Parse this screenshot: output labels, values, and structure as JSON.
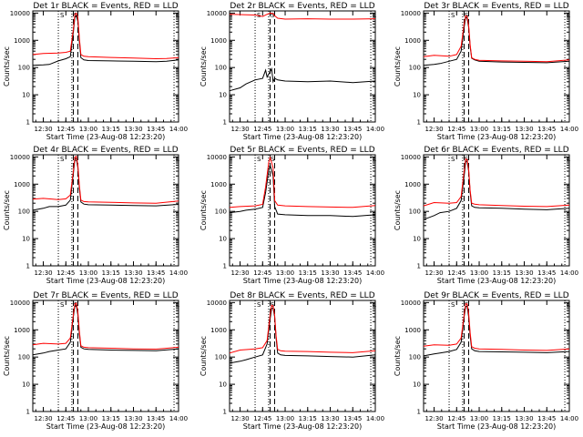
{
  "page": {
    "background": "#ffffff"
  },
  "colors": {
    "events": "#000000",
    "lld": "#ff0000",
    "axes": "#000000"
  },
  "shared": {
    "ylabel": "Counts/sec",
    "xlabel": "Start Time (23-Aug-08 12:23:20)",
    "xticks": [
      "12:30",
      "12:45",
      "13:00",
      "13:15",
      "13:30",
      "13:45",
      "14:00"
    ],
    "yticks": [
      "1",
      "10",
      "100",
      "1000",
      "10000"
    ]
  },
  "chart_data": [
    {
      "type": "line",
      "title": "Det 1r BLACK = Events, RED = LLD",
      "xlabel": "Start Time (23-Aug-08 12:23:20)",
      "ylabel": "Counts/sec",
      "xlim": [
        "12:23",
        "14:00"
      ],
      "ylim": [
        1,
        12000
      ],
      "yscale": "log",
      "markers": {
        "dotted_lines": [
          "12:40",
          "12:49",
          "13:57"
        ],
        "dashed_lines": [
          "12:50",
          "12:53"
        ],
        "top_labels": [
          "S",
          "S",
          "L"
        ]
      },
      "series": [
        {
          "name": "Events",
          "color": "#000000",
          "x": [
            "12:23",
            "12:30",
            "12:34",
            "12:40",
            "12:45",
            "12:48",
            "12:50",
            "12:51",
            "12:52",
            "12:53",
            "12:54",
            "12:55",
            "12:57",
            "13:00",
            "13:15",
            "13:30",
            "13:45",
            "13:52",
            "14:00"
          ],
          "y": [
            120,
            125,
            130,
            175,
            210,
            250,
            2000,
            7000,
            8000,
            5000,
            900,
            230,
            190,
            180,
            175,
            170,
            165,
            170,
            190
          ]
        },
        {
          "name": "LLD",
          "color": "#ff0000",
          "x": [
            "12:23",
            "12:30",
            "12:40",
            "12:45",
            "12:48",
            "12:50",
            "12:51",
            "12:52",
            "12:53",
            "12:54",
            "12:55",
            "12:57",
            "13:00",
            "13:15",
            "13:30",
            "13:45",
            "13:52",
            "14:00"
          ],
          "y": [
            300,
            330,
            340,
            360,
            400,
            2500,
            9000,
            10000,
            7000,
            1200,
            300,
            260,
            250,
            235,
            225,
            210,
            215,
            230
          ]
        }
      ]
    },
    {
      "type": "line",
      "title": "Det 2r BLACK = Events, RED = LLD",
      "xlabel": "Start Time (23-Aug-08 12:23:20)",
      "ylabel": "Counts/sec",
      "xlim": [
        "12:23",
        "14:00"
      ],
      "ylim": [
        1,
        12000
      ],
      "yscale": "log",
      "markers": {
        "dotted_lines": [
          "12:40",
          "12:49",
          "13:57"
        ],
        "dashed_lines": [
          "12:50",
          "12:53"
        ],
        "top_labels": [
          "S",
          "S",
          "L"
        ]
      },
      "series": [
        {
          "name": "Events",
          "color": "#000000",
          "x": [
            "12:23",
            "12:30",
            "12:34",
            "12:40",
            "12:45",
            "12:47",
            "12:48",
            "12:51",
            "12:52",
            "12:53",
            "12:55",
            "13:00",
            "13:15",
            "13:30",
            "13:45",
            "14:00"
          ],
          "y": [
            14,
            18,
            25,
            35,
            40,
            80,
            45,
            90,
            30,
            40,
            35,
            32,
            30,
            32,
            28,
            32
          ]
        },
        {
          "name": "LLD",
          "color": "#ff0000",
          "x": [
            "12:23",
            "12:40",
            "12:45",
            "12:48",
            "12:50",
            "12:52",
            "12:53",
            "12:55",
            "13:00",
            "13:15",
            "13:30",
            "13:45",
            "14:00"
          ],
          "y": [
            9000,
            8500,
            7500,
            9000,
            10000,
            9500,
            8000,
            6500,
            6000,
            6200,
            6000,
            6000,
            6200
          ]
        }
      ]
    },
    {
      "type": "line",
      "title": "Det 3r BLACK = Events, RED = LLD",
      "xlabel": "Start Time (23-Aug-08 12:23:20)",
      "ylabel": "Counts/sec",
      "xlim": [
        "12:23",
        "14:00"
      ],
      "ylim": [
        1,
        12000
      ],
      "yscale": "log",
      "markers": {
        "dotted_lines": [
          "12:40",
          "12:49",
          "13:57"
        ],
        "dashed_lines": [
          "12:50",
          "12:53"
        ],
        "top_labels": [
          "S",
          "S",
          "L"
        ]
      },
      "series": [
        {
          "name": "Events",
          "color": "#000000",
          "x": [
            "12:23",
            "12:30",
            "12:34",
            "12:40",
            "12:45",
            "12:48",
            "12:50",
            "12:51",
            "12:52",
            "12:53",
            "12:54",
            "12:55",
            "12:57",
            "13:00",
            "13:15",
            "13:30",
            "13:45",
            "14:00"
          ],
          "y": [
            120,
            130,
            140,
            170,
            200,
            400,
            3000,
            7000,
            6500,
            3000,
            600,
            220,
            190,
            170,
            160,
            155,
            150,
            170
          ]
        },
        {
          "name": "LLD",
          "color": "#ff0000",
          "x": [
            "12:23",
            "12:30",
            "12:40",
            "12:45",
            "12:48",
            "12:50",
            "12:51",
            "12:52",
            "12:53",
            "12:54",
            "12:55",
            "12:57",
            "13:00",
            "13:15",
            "13:30",
            "13:45",
            "14:00"
          ],
          "y": [
            250,
            280,
            260,
            300,
            600,
            4000,
            8000,
            7500,
            3500,
            700,
            230,
            200,
            185,
            175,
            170,
            165,
            190
          ]
        }
      ]
    },
    {
      "type": "line",
      "title": "Det 4r BLACK = Events, RED = LLD",
      "xlabel": "Start Time (23-Aug-08 12:23:20)",
      "ylabel": "Counts/sec",
      "xlim": [
        "12:23",
        "14:00"
      ],
      "ylim": [
        1,
        12000
      ],
      "yscale": "log",
      "markers": {
        "dotted_lines": [
          "12:40",
          "12:49",
          "13:57"
        ],
        "dashed_lines": [
          "12:50",
          "12:53"
        ],
        "top_labels": [
          "S",
          "S",
          "L"
        ]
      },
      "series": [
        {
          "name": "Events",
          "color": "#000000",
          "x": [
            "12:23",
            "12:30",
            "12:34",
            "12:40",
            "12:45",
            "12:48",
            "12:50",
            "12:51",
            "12:52",
            "12:53",
            "12:54",
            "12:55",
            "12:57",
            "13:00",
            "13:15",
            "13:30",
            "13:45",
            "14:00"
          ],
          "y": [
            110,
            130,
            150,
            150,
            170,
            260,
            2500,
            8000,
            9000,
            4000,
            700,
            220,
            185,
            175,
            170,
            165,
            160,
            180
          ]
        },
        {
          "name": "LLD",
          "color": "#ff0000",
          "x": [
            "12:23",
            "12:30",
            "12:40",
            "12:45",
            "12:48",
            "12:50",
            "12:51",
            "12:52",
            "12:53",
            "12:54",
            "12:55",
            "12:57",
            "13:00",
            "13:15",
            "13:30",
            "13:45",
            "14:00"
          ],
          "y": [
            280,
            300,
            270,
            290,
            400,
            3000,
            9500,
            10500,
            5000,
            900,
            260,
            230,
            225,
            215,
            205,
            200,
            240
          ]
        }
      ]
    },
    {
      "type": "line",
      "title": "Det 5r BLACK = Events, RED = LLD",
      "xlabel": "Start Time (23-Aug-08 12:23:20)",
      "ylabel": "Counts/sec",
      "xlim": [
        "12:23",
        "14:00"
      ],
      "ylim": [
        1,
        12000
      ],
      "yscale": "log",
      "markers": {
        "dotted_lines": [
          "12:40",
          "12:49",
          "13:57"
        ],
        "dashed_lines": [
          "12:50",
          "12:53"
        ],
        "top_labels": [
          "S",
          "S",
          "L"
        ]
      },
      "series": [
        {
          "name": "Events",
          "color": "#000000",
          "x": [
            "12:23",
            "12:30",
            "12:34",
            "12:40",
            "12:45",
            "12:47",
            "12:49",
            "12:50",
            "12:52",
            "12:53",
            "12:55",
            "13:00",
            "13:15",
            "13:30",
            "13:45",
            "14:00"
          ],
          "y": [
            90,
            100,
            110,
            120,
            140,
            500,
            3000,
            5000,
            2000,
            150,
            80,
            75,
            70,
            70,
            65,
            75
          ]
        },
        {
          "name": "LLD",
          "color": "#ff0000",
          "x": [
            "12:23",
            "12:30",
            "12:40",
            "12:45",
            "12:47",
            "12:49",
            "12:50",
            "12:52",
            "12:53",
            "12:55",
            "13:00",
            "13:15",
            "13:30",
            "13:45",
            "14:00"
          ],
          "y": [
            140,
            150,
            160,
            180,
            800,
            6000,
            9500,
            4000,
            250,
            170,
            160,
            150,
            145,
            140,
            165
          ]
        }
      ]
    },
    {
      "type": "line",
      "title": "Det 6r BLACK = Events, RED = LLD",
      "xlabel": "Start Time (23-Aug-08 12:23:20)",
      "ylabel": "Counts/sec",
      "xlim": [
        "12:23",
        "14:00"
      ],
      "ylim": [
        1,
        12000
      ],
      "yscale": "log",
      "markers": {
        "dotted_lines": [
          "12:40",
          "12:49",
          "13:57"
        ],
        "dashed_lines": [
          "12:50",
          "12:53"
        ],
        "top_labels": [
          "S",
          "S",
          "L"
        ]
      },
      "series": [
        {
          "name": "Events",
          "color": "#000000",
          "x": [
            "12:23",
            "12:30",
            "12:34",
            "12:40",
            "12:45",
            "12:48",
            "12:50",
            "12:51",
            "12:52",
            "12:53",
            "12:54",
            "12:55",
            "12:57",
            "13:00",
            "13:15",
            "13:30",
            "13:45",
            "14:00"
          ],
          "y": [
            50,
            70,
            90,
            100,
            130,
            250,
            2000,
            6500,
            7000,
            3000,
            500,
            160,
            140,
            135,
            130,
            120,
            115,
            130
          ]
        },
        {
          "name": "LLD",
          "color": "#ff0000",
          "x": [
            "12:23",
            "12:30",
            "12:40",
            "12:45",
            "12:48",
            "12:50",
            "12:51",
            "12:52",
            "12:53",
            "12:54",
            "12:55",
            "12:57",
            "13:00",
            "13:15",
            "13:30",
            "13:45",
            "14:00"
          ],
          "y": [
            160,
            210,
            200,
            210,
            350,
            3000,
            8500,
            8000,
            3500,
            600,
            200,
            185,
            175,
            165,
            155,
            150,
            170
          ]
        }
      ]
    },
    {
      "type": "line",
      "title": "Det 7r BLACK = Events, RED = LLD",
      "xlabel": "Start Time (23-Aug-08 12:23:20)",
      "ylabel": "Counts/sec",
      "xlim": [
        "12:23",
        "14:00"
      ],
      "ylim": [
        1,
        12000
      ],
      "yscale": "log",
      "markers": {
        "dotted_lines": [
          "12:40",
          "12:49",
          "13:57"
        ],
        "dashed_lines": [
          "12:50",
          "12:53"
        ],
        "top_labels": [
          "S",
          "S",
          "L"
        ]
      },
      "series": [
        {
          "name": "Events",
          "color": "#000000",
          "x": [
            "12:23",
            "12:30",
            "12:34",
            "12:40",
            "12:45",
            "12:48",
            "12:50",
            "12:51",
            "12:52",
            "12:53",
            "12:54",
            "12:55",
            "12:57",
            "13:00",
            "13:15",
            "13:30",
            "13:45",
            "14:00"
          ],
          "y": [
            120,
            140,
            160,
            180,
            200,
            350,
            3000,
            7500,
            8000,
            3500,
            700,
            230,
            200,
            190,
            180,
            175,
            170,
            200
          ]
        },
        {
          "name": "LLD",
          "color": "#ff0000",
          "x": [
            "12:23",
            "12:30",
            "12:40",
            "12:45",
            "12:48",
            "12:50",
            "12:51",
            "12:52",
            "12:53",
            "12:54",
            "12:55",
            "12:57",
            "13:00",
            "13:15",
            "13:30",
            "13:45",
            "14:00"
          ],
          "y": [
            280,
            320,
            300,
            320,
            500,
            3500,
            9000,
            9500,
            4500,
            900,
            260,
            230,
            220,
            210,
            200,
            195,
            230
          ]
        }
      ]
    },
    {
      "type": "line",
      "title": "Det 8r BLACK = Events, RED = LLD",
      "xlabel": "Start Time (23-Aug-08 12:23:20)",
      "ylabel": "Counts/sec",
      "xlim": [
        "12:23",
        "14:00"
      ],
      "ylim": [
        1,
        12000
      ],
      "yscale": "log",
      "markers": {
        "dotted_lines": [
          "12:40",
          "12:49",
          "13:57"
        ],
        "dashed_lines": [
          "12:50",
          "12:53"
        ],
        "top_labels": [
          "S",
          "S",
          "L"
        ]
      },
      "series": [
        {
          "name": "Events",
          "color": "#000000",
          "x": [
            "12:23",
            "12:30",
            "12:34",
            "12:40",
            "12:45",
            "12:48",
            "12:50",
            "12:51",
            "12:52",
            "12:53",
            "12:54",
            "12:55",
            "12:57",
            "13:00",
            "13:15",
            "13:30",
            "13:45",
            "14:00"
          ],
          "y": [
            60,
            70,
            80,
            100,
            120,
            300,
            2500,
            6000,
            6500,
            3000,
            500,
            140,
            120,
            115,
            110,
            105,
            100,
            120
          ]
        },
        {
          "name": "LLD",
          "color": "#ff0000",
          "x": [
            "12:23",
            "12:30",
            "12:40",
            "12:45",
            "12:48",
            "12:50",
            "12:51",
            "12:52",
            "12:53",
            "12:54",
            "12:55",
            "12:57",
            "13:00",
            "13:15",
            "13:30",
            "13:45",
            "14:00"
          ],
          "y": [
            140,
            180,
            200,
            220,
            400,
            3500,
            8000,
            7500,
            3500,
            600,
            190,
            170,
            165,
            160,
            150,
            145,
            170
          ]
        }
      ]
    },
    {
      "type": "line",
      "title": "Det 9r BLACK = Events, RED = LLD",
      "xlabel": "Start Time (23-Aug-08 12:23:20)",
      "ylabel": "Counts/sec",
      "xlim": [
        "12:23",
        "14:00"
      ],
      "ylim": [
        1,
        12000
      ],
      "yscale": "log",
      "markers": {
        "dotted_lines": [
          "12:40",
          "12:49",
          "13:57"
        ],
        "dashed_lines": [
          "12:50",
          "12:53"
        ],
        "top_labels": [
          "S",
          "S",
          "L"
        ]
      },
      "series": [
        {
          "name": "Events",
          "color": "#000000",
          "x": [
            "12:23",
            "12:30",
            "12:34",
            "12:40",
            "12:45",
            "12:48",
            "12:50",
            "12:51",
            "12:52",
            "12:53",
            "12:54",
            "12:55",
            "12:57",
            "13:00",
            "13:15",
            "13:30",
            "13:45",
            "14:00"
          ],
          "y": [
            110,
            130,
            140,
            160,
            190,
            350,
            3000,
            7000,
            7500,
            3000,
            600,
            200,
            170,
            160,
            155,
            150,
            145,
            160
          ]
        },
        {
          "name": "LLD",
          "color": "#ff0000",
          "x": [
            "12:23",
            "12:30",
            "12:40",
            "12:45",
            "12:48",
            "12:50",
            "12:51",
            "12:52",
            "12:53",
            "12:54",
            "12:55",
            "12:57",
            "13:00",
            "13:15",
            "13:30",
            "13:45",
            "14:00"
          ],
          "y": [
            250,
            280,
            270,
            300,
            500,
            3500,
            9000,
            9000,
            4000,
            800,
            240,
            210,
            200,
            190,
            180,
            175,
            200
          ]
        }
      ]
    }
  ]
}
